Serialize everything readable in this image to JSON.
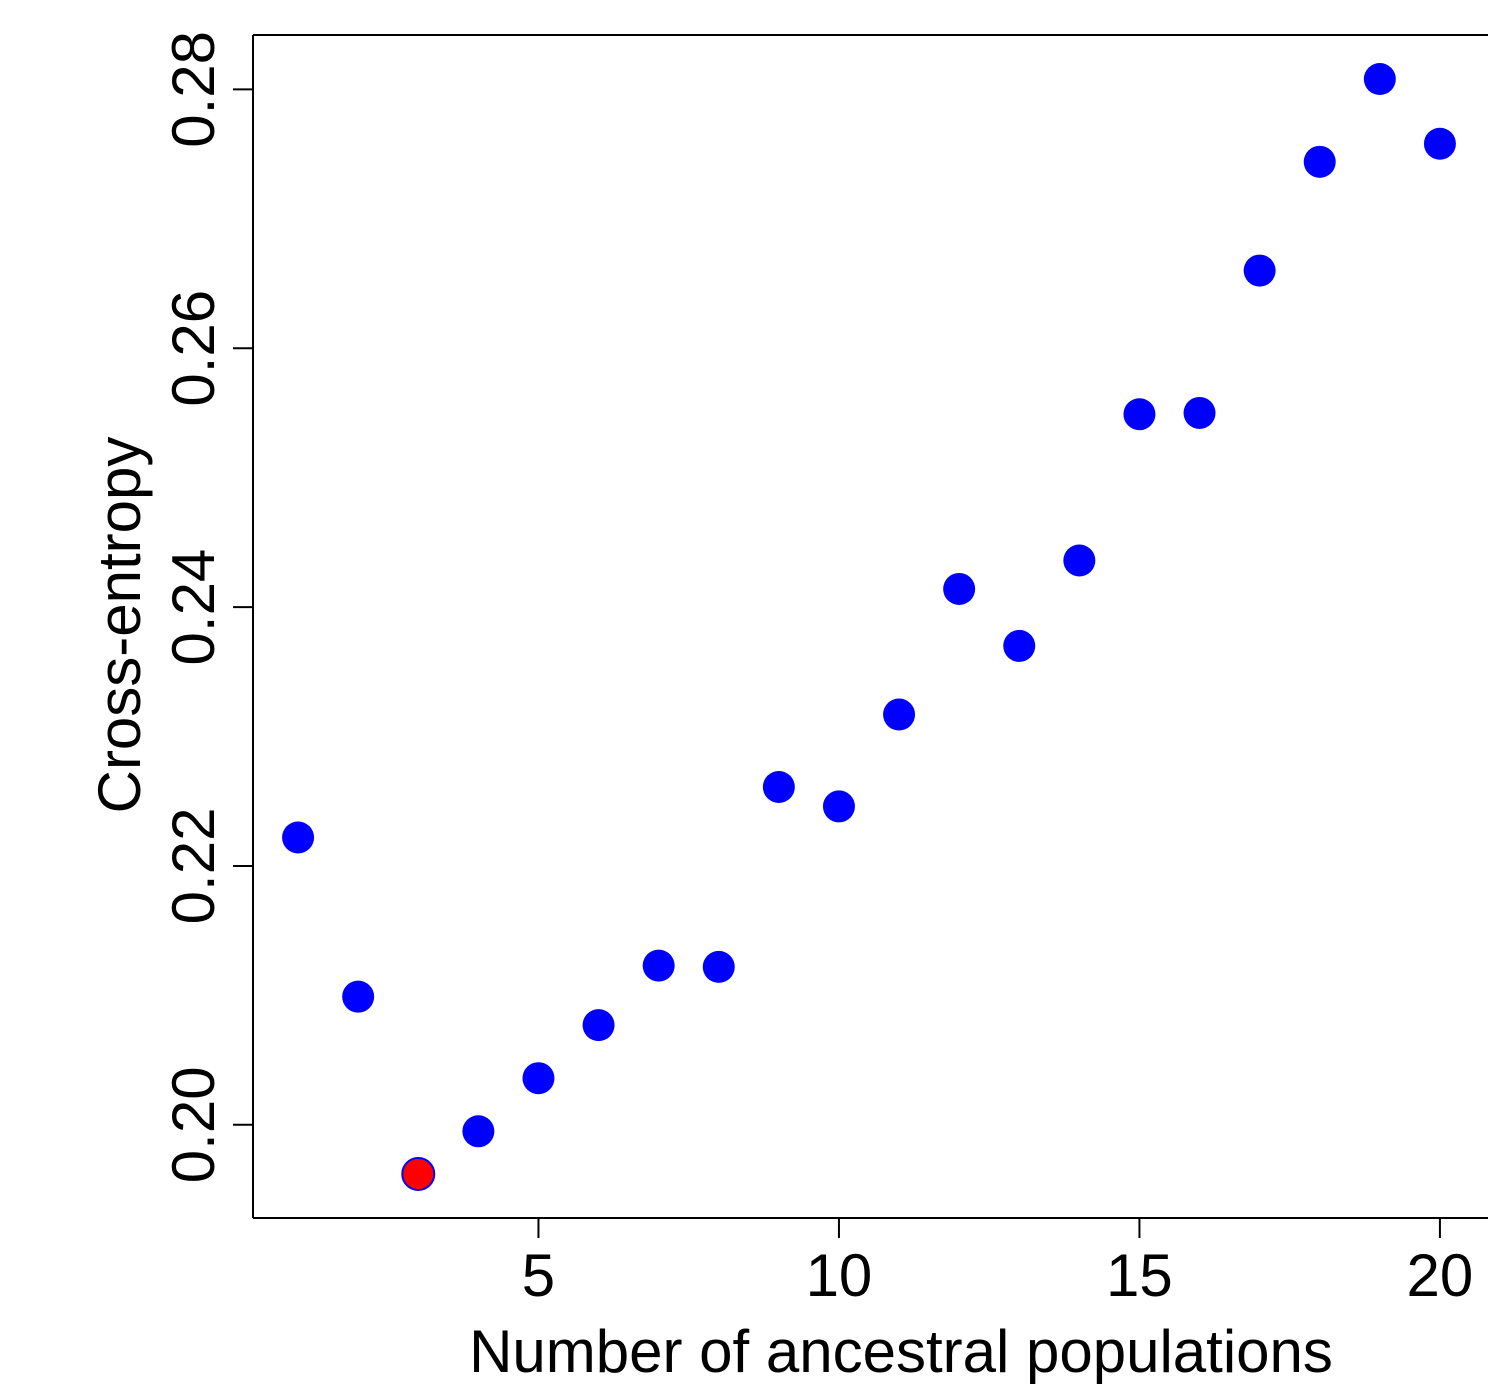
{
  "chart_data": {
    "type": "scatter",
    "xlabel": "Number of ancestral populations",
    "ylabel": "Cross-entropy",
    "x_ticks": [
      "5",
      "10",
      "15",
      "20"
    ],
    "y_ticks": [
      "0.20",
      "0.22",
      "0.24",
      "0.26",
      "0.28"
    ],
    "xlim": [
      0.25,
      20.8
    ],
    "ylim": [
      0.1928,
      0.2842
    ],
    "grid": false,
    "colors": {
      "point": "#0000ff",
      "highlight": "#ff0000",
      "axis": "#000000"
    },
    "series": [
      {
        "x": [
          1,
          2,
          3,
          4,
          5,
          6,
          7,
          8,
          9,
          10,
          11,
          12,
          13,
          14,
          15,
          16,
          17,
          18,
          19,
          20
        ],
        "y": [
          0.2222,
          0.2099,
          0.1962,
          0.1995,
          0.2036,
          0.2077,
          0.2123,
          0.2122,
          0.2261,
          0.2246,
          0.2317,
          0.2414,
          0.237,
          0.2436,
          0.2549,
          0.255,
          0.266,
          0.2744,
          0.2808,
          0.2758
        ]
      }
    ],
    "highlight": {
      "x": 3,
      "y": 0.1962
    }
  }
}
